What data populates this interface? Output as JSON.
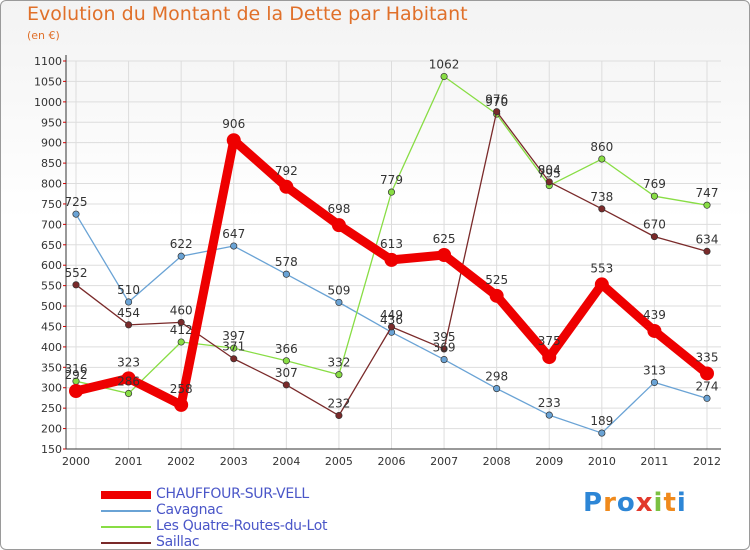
{
  "title": "Evolution du Montant de la Dette par Habitant",
  "subtitle": "(en €)",
  "logo_text": "Proxiti",
  "chart_data": {
    "type": "line",
    "x": [
      "2000",
      "2001",
      "2002",
      "2003",
      "2004",
      "2005",
      "2006",
      "2007",
      "2008",
      "2009",
      "2010",
      "2011",
      "2012"
    ],
    "ylim": [
      150,
      1100
    ],
    "yticks": [
      150,
      200,
      250,
      300,
      350,
      400,
      450,
      500,
      550,
      600,
      650,
      700,
      750,
      800,
      850,
      900,
      950,
      1000,
      1050,
      1100
    ],
    "grid": true,
    "legend_position": "bottom",
    "series": [
      {
        "name": "CHAUFFOUR-SUR-VELL",
        "color": "#ee0000",
        "values": [
          292,
          323,
          258,
          906,
          792,
          698,
          613,
          625,
          525,
          375,
          553,
          439,
          335
        ],
        "labels": [
          "292",
          "323",
          "258",
          "906",
          "792",
          "698",
          "613",
          "625",
          "525",
          "375",
          "553",
          "439",
          "335"
        ]
      },
      {
        "name": "Cavagnac",
        "color": "#6aa3d5",
        "values": [
          725,
          510,
          622,
          647,
          578,
          509,
          436,
          369,
          298,
          233,
          189,
          313,
          274
        ],
        "labels": [
          "725",
          "510",
          "622",
          "647",
          "578",
          "509",
          "436",
          "369",
          "298",
          "233",
          "189",
          "313",
          "274"
        ]
      },
      {
        "name": "Les Quatre-Routes-du-Lot",
        "color": "#88dd44",
        "values": [
          316,
          286,
          412,
          397,
          366,
          332,
          779,
          1062,
          970,
          795,
          860,
          769,
          747
        ],
        "labels": [
          "316",
          "286",
          "412",
          "397",
          "366",
          "332",
          "779",
          "1062",
          "970",
          "795",
          "860",
          "769",
          "747"
        ]
      },
      {
        "name": "Saillac",
        "color": "#7a2a2a",
        "values": [
          552,
          454,
          460,
          371,
          307,
          232,
          449,
          395,
          976,
          804,
          738,
          670,
          634
        ],
        "labels": [
          "552",
          "454",
          "460",
          "371",
          "307",
          "232",
          "449",
          "395",
          "976",
          "804",
          "738",
          "670",
          "634"
        ]
      }
    ]
  }
}
